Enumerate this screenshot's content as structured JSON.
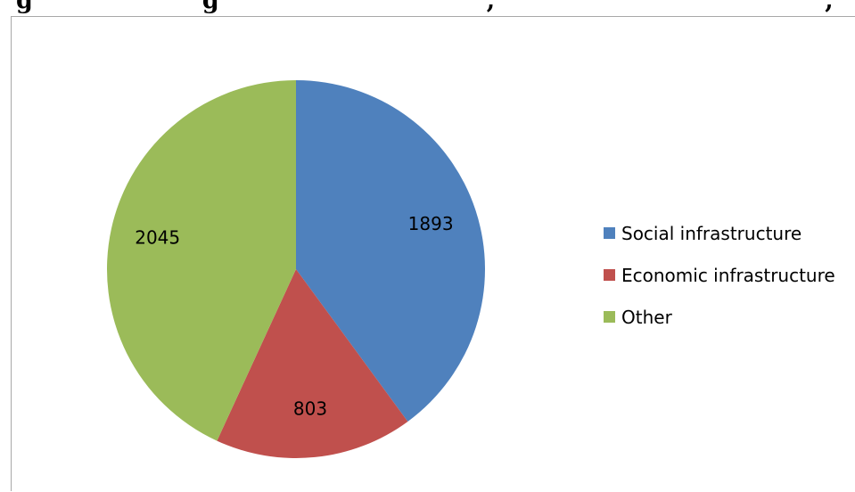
{
  "caption": {
    "text_left": "g",
    "text_mid": "g",
    "text_tail": ",",
    "text_end": ","
  },
  "chart_data": {
    "type": "pie",
    "categories": [
      "Social infrastructure",
      "Economic infrastructure",
      "Other"
    ],
    "values": [
      1893,
      803,
      2045
    ],
    "data_labels": [
      "1893",
      "803",
      "2045"
    ],
    "colors": [
      "#4f81bd",
      "#c0504d",
      "#9bbb59"
    ],
    "start_angle_deg": 0,
    "direction": "clockwise",
    "legend_position": "right"
  }
}
